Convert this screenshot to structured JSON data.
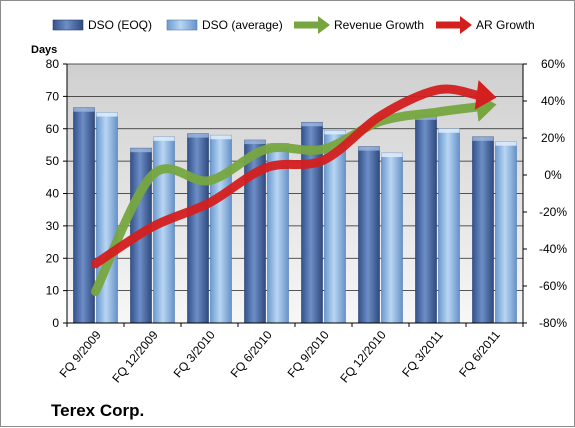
{
  "chart_data": {
    "type": "bar",
    "title": "Terex Corp.",
    "ylabel_left": "Days",
    "categories": [
      "FQ 9/2009",
      "FQ 12/2009",
      "FQ 3/2010",
      "FQ 6/2010",
      "FQ 9/2010",
      "FQ 12/2010",
      "FQ 3/2011",
      "FQ 6/2011"
    ],
    "ylim_left": [
      0,
      80
    ],
    "yticks_left": [
      "0",
      "10",
      "20",
      "30",
      "40",
      "50",
      "60",
      "70",
      "80"
    ],
    "ylim_right": [
      -80,
      60
    ],
    "yticks_right": [
      "-80%",
      "-60%",
      "-40%",
      "-20%",
      "0%",
      "20%",
      "40%",
      "60%"
    ],
    "grid": true,
    "legend_position": "top",
    "series": [
      {
        "name": "DSO (EOQ)",
        "kind": "bar",
        "axis": "left",
        "color": "#4f6fa8",
        "values": [
          66.5,
          54,
          58.5,
          56.5,
          62,
          54.5,
          64,
          57.5
        ]
      },
      {
        "name": "DSO (average)",
        "kind": "bar",
        "axis": "left",
        "color": "#8fb8e6",
        "values": [
          65,
          57.5,
          58,
          55.5,
          59.5,
          52.5,
          60,
          56
        ]
      },
      {
        "name": "Revenue Growth",
        "kind": "arrow-line",
        "axis": "right",
        "color": "#77a640",
        "values": [
          -63,
          0,
          -3,
          14,
          14,
          29,
          34,
          38
        ]
      },
      {
        "name": "AR Growth",
        "kind": "arrow-line",
        "axis": "right",
        "color": "#d41f1f",
        "values": [
          -48,
          -28,
          -15,
          4,
          8,
          32,
          46,
          42
        ]
      }
    ]
  }
}
